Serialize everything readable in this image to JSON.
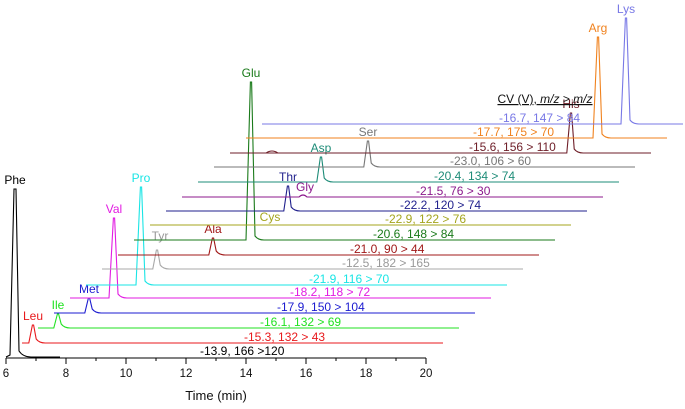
{
  "chart_data": {
    "type": "line",
    "title": "",
    "xlabel": "Time (min)",
    "ylabel": "",
    "xlim": [
      6,
      20
    ],
    "x_ticks": [
      6,
      8,
      10,
      12,
      14,
      16,
      18,
      20
    ],
    "grid": false,
    "legend_header": "CV (V), m/z > m/z",
    "series": [
      {
        "name": "Phe",
        "annotation": "-13.9, 166 >120",
        "color": "#000000",
        "peak_time": 6.3,
        "relative_height": 168
      },
      {
        "name": "Leu",
        "annotation": "-15.3, 132 > 43",
        "color": "#e8191c",
        "peak_time": 6.9,
        "relative_height": 18
      },
      {
        "name": "Ile",
        "annotation": "-16.1, 132 > 69",
        "color": "#22e222",
        "peak_time": 7.7,
        "relative_height": 14
      },
      {
        "name": "Met",
        "annotation": "-17.9, 150 > 104",
        "color": "#1b1bd0",
        "peak_time": 8.8,
        "relative_height": 15
      },
      {
        "name": "Val",
        "annotation": "-18.2, 118 > 72",
        "color": "#e21be2",
        "peak_time": 9.6,
        "relative_height": 80
      },
      {
        "name": "Pro",
        "annotation": "-21.9, 116 > 70",
        "color": "#19e5e5",
        "peak_time": 10.5,
        "relative_height": 98
      },
      {
        "name": "Tyr",
        "annotation": "-12.5, 182 > 165",
        "color": "#a8a8a8",
        "peak_time": 11.0,
        "relative_height": 19
      },
      {
        "name": "Ala",
        "annotation": "-21.0, 90 > 44",
        "color": "#a01818",
        "peak_time": 12.9,
        "relative_height": 17
      },
      {
        "name": "Glu",
        "annotation": "-20.6, 148 > 84",
        "color": "#1a7a1a",
        "peak_time": 14.2,
        "relative_height": 158
      },
      {
        "name": "Cys",
        "annotation": "-22.9, 122 > 76",
        "color": "#a5a51e",
        "peak_time": 14.5,
        "relative_height": 0
      },
      {
        "name": "Thr",
        "annotation": "-22.2, 120 > 74",
        "color": "#1f1f8c",
        "peak_time": 15.4,
        "relative_height": 25
      },
      {
        "name": "Gly",
        "annotation": "-21.5, 76 > 30",
        "color": "#8c1a8c",
        "peak_time": 15.9,
        "relative_height": 2
      },
      {
        "name": "Asp",
        "annotation": "-20.4, 134 > 74",
        "color": "#1e8c78",
        "peak_time": 16.5,
        "relative_height": 25
      },
      {
        "name": "Ser",
        "annotation": "-23.0, 106 > 60",
        "color": "#777777",
        "peak_time": 18.1,
        "relative_height": 26
      },
      {
        "name": "His",
        "annotation": "-15.6, 156 > 110",
        "color": "#6e1e28",
        "peak_time": 24.9,
        "relative_height": 40
      },
      {
        "name": "Arg",
        "annotation": "-17.7, 175 > 70",
        "color": "#f0821e",
        "peak_time": 25.7,
        "relative_height": 101
      },
      {
        "name": "Lys",
        "annotation": "-16.7, 147 > 84",
        "color": "#7878e6",
        "peak_time": 26.7,
        "relative_height": 106
      }
    ]
  }
}
